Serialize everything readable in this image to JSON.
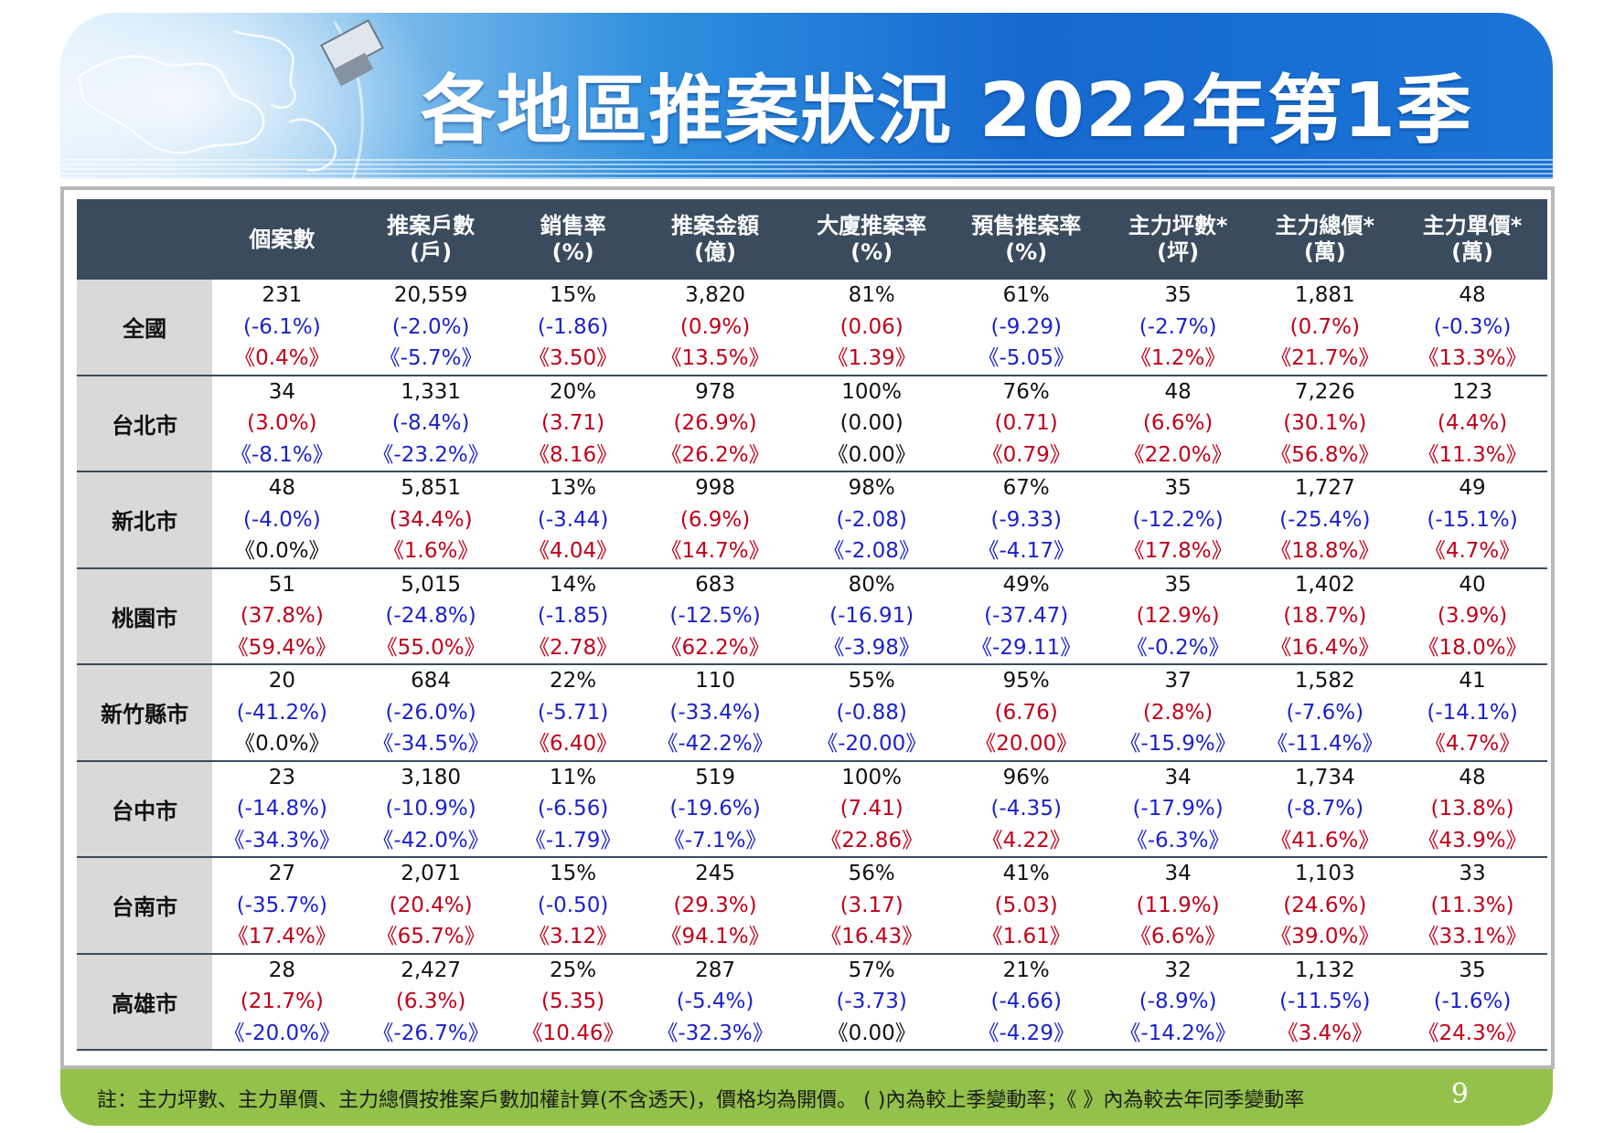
{
  "header": {
    "title": "各地區推案狀況 2022年第1季"
  },
  "table": {
    "columns": [
      [
        "個案數",
        ""
      ],
      [
        "推案戶數",
        "(戶)"
      ],
      [
        "銷售率",
        "(%)"
      ],
      [
        "推案金額",
        "(億)"
      ],
      [
        "大廈推案率",
        "(%)"
      ],
      [
        "預售推案率",
        "(%)"
      ],
      [
        "主力坪數*",
        "(坪)"
      ],
      [
        "主力總價*",
        "(萬)"
      ],
      [
        "主力單價*",
        "(萬)"
      ]
    ],
    "rows": [
      {
        "region": "全國",
        "cells": [
          [
            "231",
            "(-6.1%)",
            "《0.4%》"
          ],
          [
            "20,559",
            "(-2.0%)",
            "《-5.7%》"
          ],
          [
            "15%",
            "(-1.86)",
            "《3.50》"
          ],
          [
            "3,820",
            "(0.9%)",
            "《13.5%》"
          ],
          [
            "81%",
            "(0.06)",
            "《1.39》"
          ],
          [
            "61%",
            "(-9.29)",
            "《-5.05》"
          ],
          [
            "35",
            "(-2.7%)",
            "《1.2%》"
          ],
          [
            "1,881",
            "(0.7%)",
            "《21.7%》"
          ],
          [
            "48",
            "(-0.3%)",
            "《13.3%》"
          ]
        ]
      },
      {
        "region": "台北市",
        "cells": [
          [
            "34",
            "(3.0%)",
            "《-8.1%》"
          ],
          [
            "1,331",
            "(-8.4%)",
            "《-23.2%》"
          ],
          [
            "20%",
            "(3.71)",
            "《8.16》"
          ],
          [
            "978",
            "(26.9%)",
            "《26.2%》"
          ],
          [
            "100%",
            "(0.00)",
            "《0.00》"
          ],
          [
            "76%",
            "(0.71)",
            "《0.79》"
          ],
          [
            "48",
            "(6.6%)",
            "《22.0%》"
          ],
          [
            "7,226",
            "(30.1%)",
            "《56.8%》"
          ],
          [
            "123",
            "(4.4%)",
            "《11.3%》"
          ]
        ]
      },
      {
        "region": "新北市",
        "cells": [
          [
            "48",
            "(-4.0%)",
            "《0.0%》"
          ],
          [
            "5,851",
            "(34.4%)",
            "《1.6%》"
          ],
          [
            "13%",
            "(-3.44)",
            "《4.04》"
          ],
          [
            "998",
            "(6.9%)",
            "《14.7%》"
          ],
          [
            "98%",
            "(-2.08)",
            "《-2.08》"
          ],
          [
            "67%",
            "(-9.33)",
            "《-4.17》"
          ],
          [
            "35",
            "(-12.2%)",
            "《17.8%》"
          ],
          [
            "1,727",
            "(-25.4%)",
            "《18.8%》"
          ],
          [
            "49",
            "(-15.1%)",
            "《4.7%》"
          ]
        ]
      },
      {
        "region": "桃園市",
        "cells": [
          [
            "51",
            "(37.8%)",
            "《59.4%》"
          ],
          [
            "5,015",
            "(-24.8%)",
            "《55.0%》"
          ],
          [
            "14%",
            "(-1.85)",
            "《2.78》"
          ],
          [
            "683",
            "(-12.5%)",
            "《62.2%》"
          ],
          [
            "80%",
            "(-16.91)",
            "《-3.98》"
          ],
          [
            "49%",
            "(-37.47)",
            "《-29.11》"
          ],
          [
            "35",
            "(12.9%)",
            "《-0.2%》"
          ],
          [
            "1,402",
            "(18.7%)",
            "《16.4%》"
          ],
          [
            "40",
            "(3.9%)",
            "《18.0%》"
          ]
        ]
      },
      {
        "region": "新竹縣市",
        "cells": [
          [
            "20",
            "(-41.2%)",
            "《0.0%》"
          ],
          [
            "684",
            "(-26.0%)",
            "《-34.5%》"
          ],
          [
            "22%",
            "(-5.71)",
            "《6.40》"
          ],
          [
            "110",
            "(-33.4%)",
            "《-42.2%》"
          ],
          [
            "55%",
            "(-0.88)",
            "《-20.00》"
          ],
          [
            "95%",
            "(6.76)",
            "《20.00》"
          ],
          [
            "37",
            "(2.8%)",
            "《-15.9%》"
          ],
          [
            "1,582",
            "(-7.6%)",
            "《-11.4%》"
          ],
          [
            "41",
            "(-14.1%)",
            "《4.7%》"
          ]
        ]
      },
      {
        "region": "台中市",
        "cells": [
          [
            "23",
            "(-14.8%)",
            "《-34.3%》"
          ],
          [
            "3,180",
            "(-10.9%)",
            "《-42.0%》"
          ],
          [
            "11%",
            "(-6.56)",
            "《-1.79》"
          ],
          [
            "519",
            "(-19.6%)",
            "《-7.1%》"
          ],
          [
            "100%",
            "(7.41)",
            "《22.86》"
          ],
          [
            "96%",
            "(-4.35)",
            "《4.22》"
          ],
          [
            "34",
            "(-17.9%)",
            "《-6.3%》"
          ],
          [
            "1,734",
            "(-8.7%)",
            "《41.6%》"
          ],
          [
            "48",
            "(13.8%)",
            "《43.9%》"
          ]
        ]
      },
      {
        "region": "台南市",
        "cells": [
          [
            "27",
            "(-35.7%)",
            "《17.4%》"
          ],
          [
            "2,071",
            "(20.4%)",
            "《65.7%》"
          ],
          [
            "15%",
            "(-0.50)",
            "《3.12》"
          ],
          [
            "245",
            "(29.3%)",
            "《94.1%》"
          ],
          [
            "56%",
            "(3.17)",
            "《16.43》"
          ],
          [
            "41%",
            "(5.03)",
            "《1.61》"
          ],
          [
            "34",
            "(11.9%)",
            "《6.6%》"
          ],
          [
            "1,103",
            "(24.6%)",
            "《39.0%》"
          ],
          [
            "33",
            "(11.3%)",
            "《33.1%》"
          ]
        ]
      },
      {
        "region": "高雄市",
        "cells": [
          [
            "28",
            "(21.7%)",
            "《-20.0%》"
          ],
          [
            "2,427",
            "(6.3%)",
            "《-26.7%》"
          ],
          [
            "25%",
            "(5.35)",
            "《10.46》"
          ],
          [
            "287",
            "(-5.4%)",
            "《-32.3%》"
          ],
          [
            "57%",
            "(-3.73)",
            "《0.00》"
          ],
          [
            "21%",
            "(-4.66)",
            "《-4.29》"
          ],
          [
            "32",
            "(-8.9%)",
            "《-14.2%》"
          ],
          [
            "1,132",
            "(-11.5%)",
            "《3.4%》"
          ],
          [
            "35",
            "(-1.6%)",
            "《24.3%》"
          ]
        ]
      }
    ]
  },
  "colors": {
    "positive": "#c0001a",
    "negative": "#1a22cc",
    "header_bg": "#3b4b5e",
    "footer_bg": "#94c14a"
  },
  "footer": {
    "note": "註：主力坪數、主力單價、主力總價按推案戶數加權計算(不含透天)，價格均為開價。 (  )內為較上季變動率；《  》內為較去年同季變動率",
    "page": "9"
  }
}
